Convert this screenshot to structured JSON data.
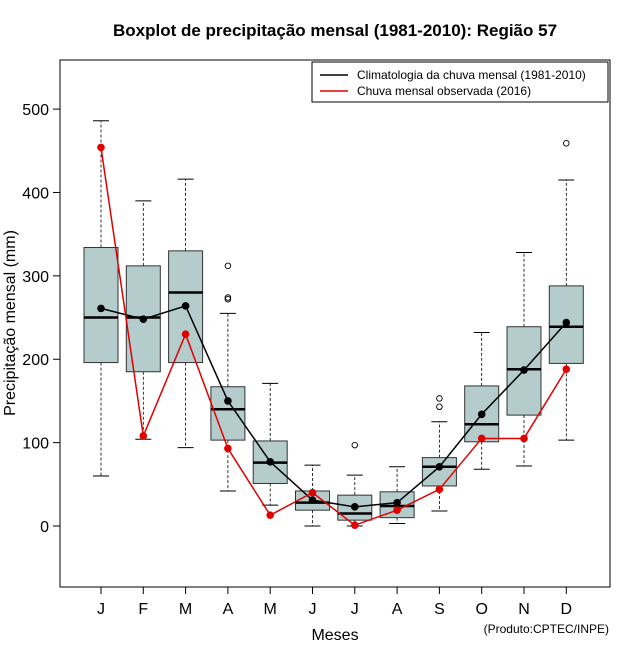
{
  "chart_data": {
    "type": "boxplot",
    "title": "Boxplot de precipitação mensal (1981-2010): Região 57",
    "xlabel": "Meses",
    "ylabel": "Precipitação mensal (mm)",
    "ylim": [
      -70,
      570
    ],
    "yticks": [
      0,
      100,
      200,
      300,
      400,
      500
    ],
    "categories": [
      "J",
      "F",
      "M",
      "A",
      "M",
      "J",
      "J",
      "A",
      "S",
      "O",
      "N",
      "D"
    ],
    "boxes": [
      {
        "min": 60,
        "q1": 196,
        "median": 250,
        "q3": 334,
        "max": 486,
        "outliers": []
      },
      {
        "min": 104,
        "q1": 185,
        "median": 250,
        "q3": 312,
        "max": 390,
        "outliers": []
      },
      {
        "min": 94,
        "q1": 196,
        "median": 280,
        "q3": 330,
        "max": 416,
        "outliers": []
      },
      {
        "min": 42,
        "q1": 103,
        "median": 140,
        "q3": 167,
        "max": 255,
        "outliers": [
          272,
          274,
          312
        ]
      },
      {
        "min": 25,
        "q1": 51,
        "median": 76,
        "q3": 102,
        "max": 171,
        "outliers": []
      },
      {
        "min": 0,
        "q1": 19,
        "median": 28,
        "q3": 42,
        "max": 73,
        "outliers": []
      },
      {
        "min": 0,
        "q1": 7,
        "median": 15,
        "q3": 37,
        "max": 61,
        "outliers": [
          97
        ]
      },
      {
        "min": 3,
        "q1": 10,
        "median": 24,
        "q3": 41,
        "max": 71,
        "outliers": []
      },
      {
        "min": 18,
        "q1": 48,
        "median": 71,
        "q3": 82,
        "max": 125,
        "outliers": [
          143,
          153
        ]
      },
      {
        "min": 68,
        "q1": 101,
        "median": 122,
        "q3": 168,
        "max": 232,
        "outliers": []
      },
      {
        "min": 72,
        "q1": 133,
        "median": 188,
        "q3": 239,
        "max": 328,
        "outliers": []
      },
      {
        "min": 103,
        "q1": 195,
        "median": 239,
        "q3": 288,
        "max": 415,
        "outliers": [
          459
        ]
      }
    ],
    "series": [
      {
        "name": "Climatologia da chuva mensal (1981-2010)",
        "color": "#000000",
        "values": [
          261,
          248,
          264,
          150,
          77,
          31,
          23,
          28,
          71,
          134,
          187,
          244
        ]
      },
      {
        "name": "Chuva mensal observada (2016)",
        "color": "#e00000",
        "values": [
          454,
          108,
          230,
          93,
          13,
          40,
          1,
          19,
          44,
          105,
          105,
          188
        ]
      }
    ],
    "box_fill": "#b4cccc",
    "legend_position": "top-right",
    "credit": "(Produto:CPTEC/INPE)"
  }
}
